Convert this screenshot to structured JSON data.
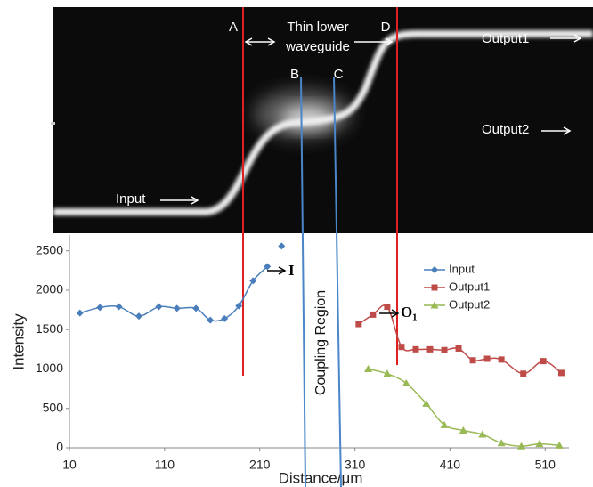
{
  "chart_data": {
    "type": "line",
    "xlabel": "Distance/μm",
    "ylabel": "Intensity",
    "xlim": [
      10,
      535
    ],
    "ylim": [
      0,
      2700
    ],
    "xticks": [
      10,
      110,
      210,
      310,
      410,
      510
    ],
    "yticks": [
      0,
      500,
      1000,
      1500,
      2000,
      2500
    ],
    "grid": false,
    "legend": "right",
    "series": [
      {
        "name": "Input",
        "color": "#4a7ebb",
        "marker": "diamond",
        "x": [
          21,
          42,
          62,
          83,
          104,
          123,
          143,
          158,
          173,
          188,
          203,
          218,
          225,
          233
        ],
        "values": [
          1710,
          1780,
          1790,
          1670,
          1790,
          1770,
          1770,
          1620,
          1640,
          1800,
          2120,
          2300,
          null,
          2560
        ]
      },
      {
        "name": "Output1",
        "color": "#be4b48",
        "marker": "square",
        "x": [
          314,
          329,
          344,
          359,
          374,
          389,
          404,
          419,
          434,
          449,
          464,
          487,
          508,
          527
        ],
        "values": [
          1570,
          1690,
          1790,
          1280,
          1250,
          1250,
          1240,
          1260,
          1110,
          1130,
          1120,
          940,
          1100,
          950
        ]
      },
      {
        "name": "Output2",
        "color": "#98b954",
        "marker": "triangle",
        "x": [
          324,
          344,
          364,
          385,
          404,
          424,
          444,
          464,
          485,
          504,
          525
        ],
        "values": [
          1000,
          940,
          820,
          560,
          290,
          220,
          170,
          60,
          20,
          50,
          30
        ]
      }
    ],
    "annotations": [
      {
        "text": "I"
      },
      {
        "text": "O",
        "subscript": "1"
      },
      {
        "text": "Coupling  Region"
      }
    ]
  },
  "image": {
    "markers": [
      "A",
      "B",
      "C",
      "D"
    ],
    "caption": [
      "Thin lower",
      "waveguide"
    ],
    "outputs": [
      "Output1",
      "Output2"
    ],
    "input": "Input"
  }
}
